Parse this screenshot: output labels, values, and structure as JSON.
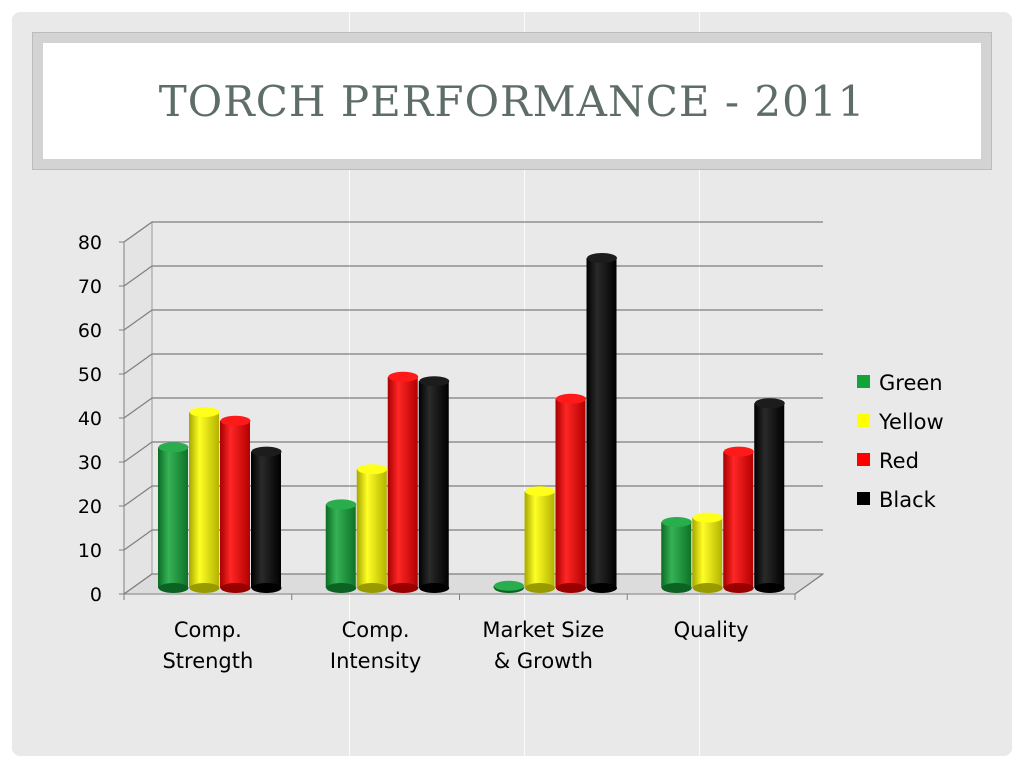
{
  "slide": {
    "title": "TORCH PERFORMANCE - 2011"
  },
  "chart_data": {
    "type": "bar",
    "title": "",
    "xlabel": "",
    "ylabel": "",
    "ylim": [
      0,
      80
    ],
    "yticks": [
      0,
      10,
      20,
      30,
      40,
      50,
      60,
      70,
      80
    ],
    "categories": [
      [
        "Comp.",
        "Strength"
      ],
      [
        "Comp.",
        "Intensity"
      ],
      [
        "Market Size",
        "& Growth"
      ],
      [
        "Quality"
      ]
    ],
    "series": [
      {
        "name": "Green",
        "color": "#12a438",
        "values": [
          32,
          19,
          0.5,
          15
        ]
      },
      {
        "name": "Yellow",
        "color": "#ffff00",
        "values": [
          40,
          27,
          22,
          16
        ]
      },
      {
        "name": "Red",
        "color": "#ff0000",
        "values": [
          38,
          48,
          43,
          31
        ]
      },
      {
        "name": "Black",
        "color": "#000000",
        "values": [
          31,
          47,
          75,
          42
        ]
      }
    ],
    "legend_position": "right",
    "grid": true,
    "style": "3d-cylinder"
  }
}
